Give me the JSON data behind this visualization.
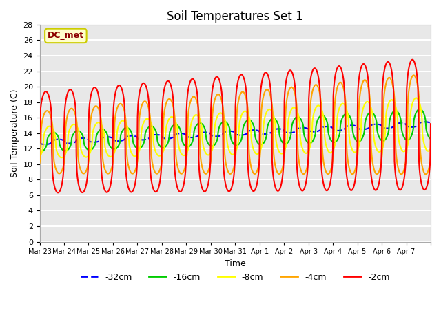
{
  "title": "Soil Temperatures Set 1",
  "xlabel": "Time",
  "ylabel": "Soil Temperature (C)",
  "ylim": [
    0,
    28
  ],
  "yticks": [
    0,
    2,
    4,
    6,
    8,
    10,
    12,
    14,
    16,
    18,
    20,
    22,
    24,
    26,
    28
  ],
  "x_labels": [
    "Mar 23",
    "Mar 24",
    "Mar 25",
    "Mar 26",
    "Mar 27",
    "Mar 28",
    "Mar 29",
    "Mar 30",
    "Mar 31",
    "Apr 1",
    "Apr 2",
    "Apr 3",
    "Apr 4",
    "Apr 5",
    "Apr 6",
    "Apr 7"
  ],
  "series_colors": [
    "blue",
    "#00cc00",
    "yellow",
    "orange",
    "red"
  ],
  "series_labels": [
    "-32cm",
    "-16cm",
    "-8cm",
    "-4cm",
    "-2cm"
  ],
  "annotation_text": "DC_met",
  "background_color": "#e8e8e8",
  "grid_color": "white",
  "n_days": 16,
  "n_points_per_day": 48
}
